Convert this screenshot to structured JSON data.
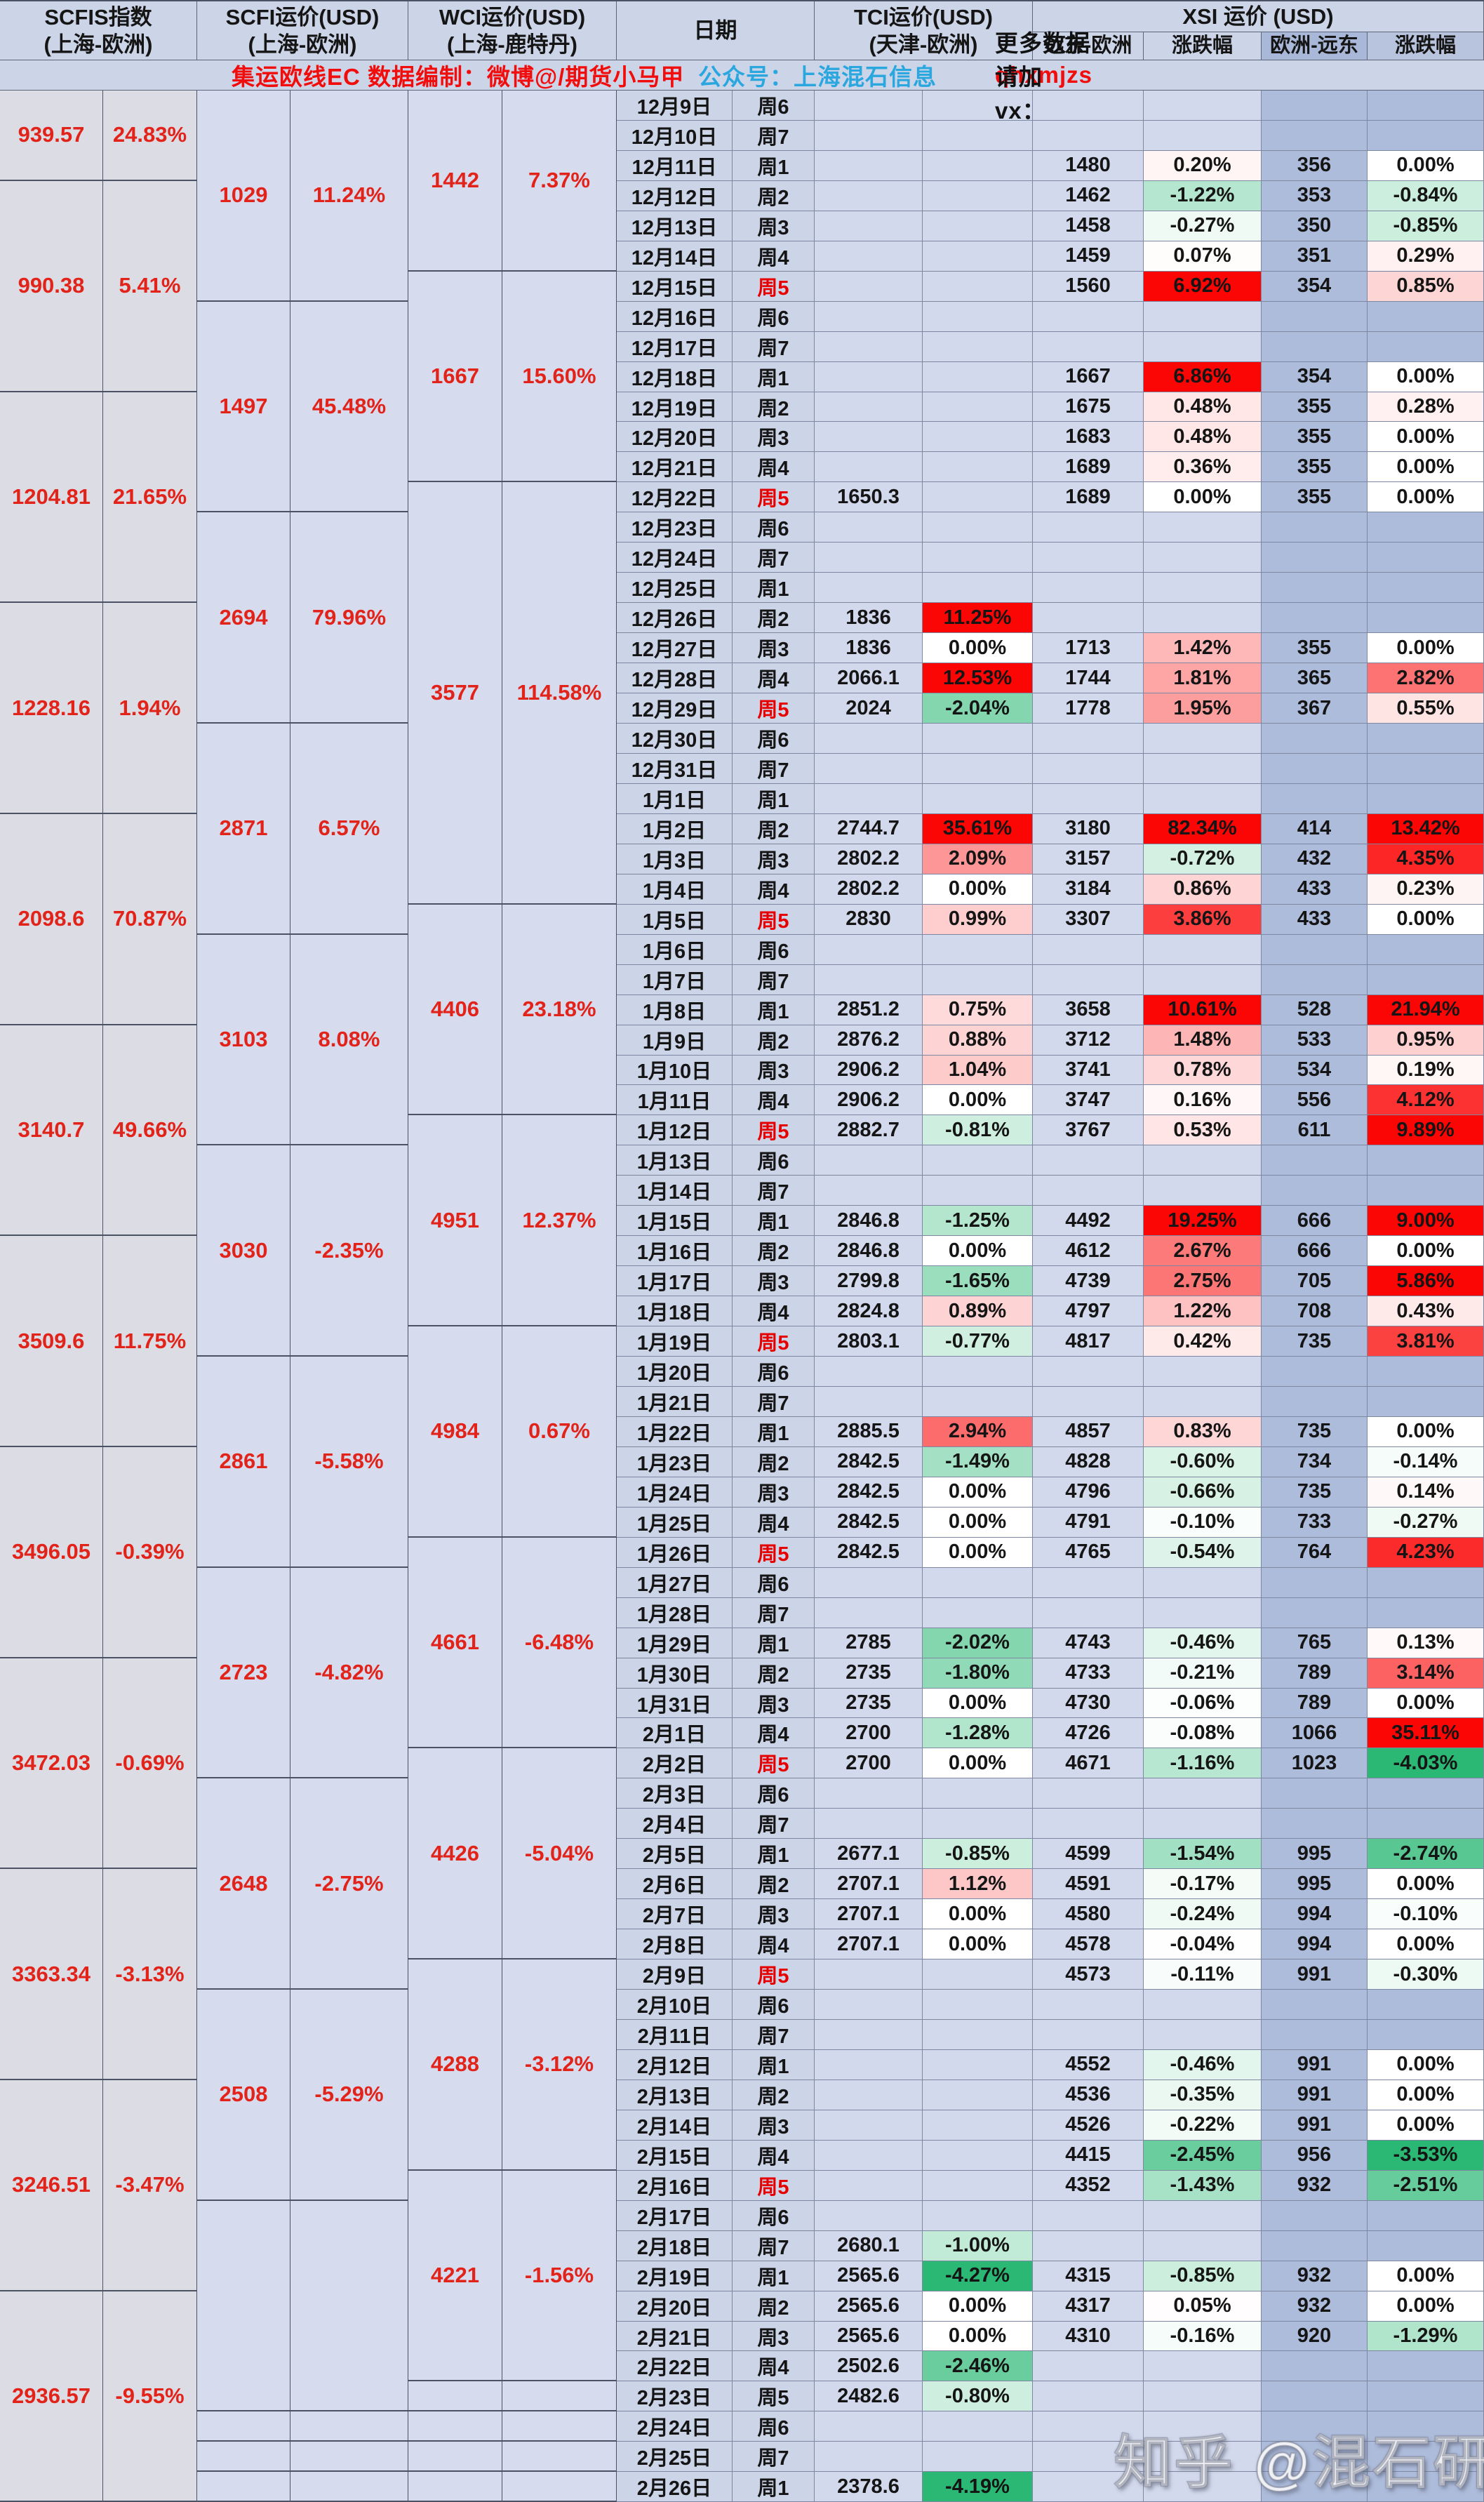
{
  "header": {
    "scfis": {
      "title": "SCFIS指数",
      "sub": "(上海-欧洲)"
    },
    "scfi": {
      "title": "SCFI运价(USD)",
      "sub": "(上海-欧洲)"
    },
    "wci": {
      "title": "WCI运价(USD)",
      "sub": "(上海-鹿特丹)"
    },
    "date": {
      "title": "日期"
    },
    "tci": {
      "title": "TCI运价(USD)",
      "sub": "(天津-欧洲)"
    },
    "xsi": {
      "title": "XSI 运价 (USD)",
      "sub_fe": "远东-欧洲",
      "sub_fe_pct": "涨跌幅",
      "sub_eu": "欧洲-远东",
      "sub_eu_pct": "涨跌幅"
    }
  },
  "info_bar": {
    "credit": "集运欧线EC 数据编制：微博@/期货小马甲",
    "account": "公众号：上海混石信息",
    "more_prefix": "更多数据请加 vx：",
    "more_wechat": "qhxmjzs"
  },
  "watermark": "知乎 @混石研究",
  "colors": {
    "pct_pos_full": "#fb0505",
    "pct_pos_cap": 5,
    "pct_neg_full": "#2ab874",
    "pct_neg_cap": 3.5,
    "text_up_red": "#e2231a",
    "text_down_green": "#189f58",
    "friday_red": "#e60000",
    "link_cyan": "#2ba7df"
  },
  "scfis_blocks": [
    {
      "value": "939.57",
      "pct": "24.83%",
      "span": 3
    },
    {
      "value": "990.38",
      "pct": "5.41%",
      "span": 7
    },
    {
      "value": "1204.81",
      "pct": "21.65%",
      "span": 7
    },
    {
      "value": "1228.16",
      "pct": "1.94%",
      "span": 7
    },
    {
      "value": "2098.6",
      "pct": "70.87%",
      "span": 7
    },
    {
      "value": "3140.7",
      "pct": "49.66%",
      "span": 7
    },
    {
      "value": "3509.6",
      "pct": "11.75%",
      "span": 7
    },
    {
      "value": "3496.05",
      "pct": "-0.39%",
      "span": 7
    },
    {
      "value": "3472.03",
      "pct": "-0.69%",
      "span": 7
    },
    {
      "value": "3363.34",
      "pct": "-3.13%",
      "span": 7
    },
    {
      "value": "3246.51",
      "pct": "-3.47%",
      "span": 7
    },
    {
      "value": "2936.57",
      "pct": "-9.55%",
      "span": 7
    }
  ],
  "scfi_blocks": [
    {
      "value": "1029",
      "pct": "11.24%",
      "span": 7
    },
    {
      "value": "1497",
      "pct": "45.48%",
      "span": 7
    },
    {
      "value": "2694",
      "pct": "79.96%",
      "span": 7
    },
    {
      "value": "2871",
      "pct": "6.57%",
      "span": 7
    },
    {
      "value": "3103",
      "pct": "8.08%",
      "span": 7
    },
    {
      "value": "3030",
      "pct": "-2.35%",
      "span": 7
    },
    {
      "value": "2861",
      "pct": "-5.58%",
      "span": 7
    },
    {
      "value": "2723",
      "pct": "-4.82%",
      "span": 7
    },
    {
      "value": "2648",
      "pct": "-2.75%",
      "span": 7
    },
    {
      "value": "2508",
      "pct": "-5.29%",
      "span": 7
    },
    {
      "value": null,
      "pct": null,
      "span": 7
    },
    {
      "value": null,
      "pct": null,
      "span": 1
    },
    {
      "value": null,
      "pct": null,
      "span": 1
    },
    {
      "value": null,
      "pct": null,
      "span": 1
    }
  ],
  "wci_blocks": [
    {
      "value": "1442",
      "pct": "7.37%",
      "span": 6
    },
    {
      "value": "1667",
      "pct": "15.60%",
      "span": 7
    },
    {
      "value": "3577",
      "pct": "114.58%",
      "span": 14
    },
    {
      "value": "4406",
      "pct": "23.18%",
      "span": 7
    },
    {
      "value": "4951",
      "pct": "12.37%",
      "span": 7
    },
    {
      "value": "4984",
      "pct": "0.67%",
      "span": 7
    },
    {
      "value": "4661",
      "pct": "-6.48%",
      "span": 7
    },
    {
      "value": "4426",
      "pct": "-5.04%",
      "span": 7
    },
    {
      "value": "4288",
      "pct": "-3.12%",
      "span": 7
    },
    {
      "value": "4221",
      "pct": "-1.56%",
      "span": 7
    },
    {
      "value": null,
      "pct": null,
      "span": 1
    },
    {
      "value": null,
      "pct": null,
      "span": 1
    },
    {
      "value": null,
      "pct": null,
      "span": 1
    },
    {
      "value": null,
      "pct": null,
      "span": 1
    }
  ],
  "row_fields": [
    "date",
    "weekday",
    "tci",
    "tci_pct",
    "fe_eu",
    "fe_eu_pct",
    "eu_fe",
    "eu_fe_pct",
    "weekday_red"
  ],
  "rows": [
    [
      "12月9日",
      "周6",
      null,
      null,
      null,
      null,
      null,
      null,
      0
    ],
    [
      "12月10日",
      "周7",
      null,
      null,
      null,
      null,
      null,
      null,
      0
    ],
    [
      "12月11日",
      "周1",
      null,
      null,
      "1480",
      "0.20%",
      "356",
      "0.00%",
      0
    ],
    [
      "12月12日",
      "周2",
      null,
      null,
      "1462",
      "-1.22%",
      "353",
      "-0.84%",
      0
    ],
    [
      "12月13日",
      "周3",
      null,
      null,
      "1458",
      "-0.27%",
      "350",
      "-0.85%",
      0
    ],
    [
      "12月14日",
      "周4",
      null,
      null,
      "1459",
      "0.07%",
      "351",
      "0.29%",
      0
    ],
    [
      "12月15日",
      "周5",
      null,
      null,
      "1560",
      "6.92%",
      "354",
      "0.85%",
      1
    ],
    [
      "12月16日",
      "周6",
      null,
      null,
      null,
      null,
      null,
      null,
      0
    ],
    [
      "12月17日",
      "周7",
      null,
      null,
      null,
      null,
      null,
      null,
      0
    ],
    [
      "12月18日",
      "周1",
      null,
      null,
      "1667",
      "6.86%",
      "354",
      "0.00%",
      0
    ],
    [
      "12月19日",
      "周2",
      null,
      null,
      "1675",
      "0.48%",
      "355",
      "0.28%",
      0
    ],
    [
      "12月20日",
      "周3",
      null,
      null,
      "1683",
      "0.48%",
      "355",
      "0.00%",
      0
    ],
    [
      "12月21日",
      "周4",
      null,
      null,
      "1689",
      "0.36%",
      "355",
      "0.00%",
      0
    ],
    [
      "12月22日",
      "周5",
      "1650.3",
      null,
      "1689",
      "0.00%",
      "355",
      "0.00%",
      1
    ],
    [
      "12月23日",
      "周6",
      null,
      null,
      null,
      null,
      null,
      null,
      0
    ],
    [
      "12月24日",
      "周7",
      null,
      null,
      null,
      null,
      null,
      null,
      0
    ],
    [
      "12月25日",
      "周1",
      null,
      null,
      null,
      null,
      null,
      null,
      0
    ],
    [
      "12月26日",
      "周2",
      "1836",
      "11.25%",
      null,
      null,
      null,
      null,
      0
    ],
    [
      "12月27日",
      "周3",
      "1836",
      "0.00%",
      "1713",
      "1.42%",
      "355",
      "0.00%",
      0
    ],
    [
      "12月28日",
      "周4",
      "2066.1",
      "12.53%",
      "1744",
      "1.81%",
      "365",
      "2.82%",
      0
    ],
    [
      "12月29日",
      "周5",
      "2024",
      "-2.04%",
      "1778",
      "1.95%",
      "367",
      "0.55%",
      1
    ],
    [
      "12月30日",
      "周6",
      null,
      null,
      null,
      null,
      null,
      null,
      0
    ],
    [
      "12月31日",
      "周7",
      null,
      null,
      null,
      null,
      null,
      null,
      0
    ],
    [
      "1月1日",
      "周1",
      null,
      null,
      null,
      null,
      null,
      null,
      0
    ],
    [
      "1月2日",
      "周2",
      "2744.7",
      "35.61%",
      "3180",
      "82.34%",
      "414",
      "13.42%",
      0
    ],
    [
      "1月3日",
      "周3",
      "2802.2",
      "2.09%",
      "3157",
      "-0.72%",
      "432",
      "4.35%",
      0
    ],
    [
      "1月4日",
      "周4",
      "2802.2",
      "0.00%",
      "3184",
      "0.86%",
      "433",
      "0.23%",
      0
    ],
    [
      "1月5日",
      "周5",
      "2830",
      "0.99%",
      "3307",
      "3.86%",
      "433",
      "0.00%",
      1
    ],
    [
      "1月6日",
      "周6",
      null,
      null,
      null,
      null,
      null,
      null,
      0
    ],
    [
      "1月7日",
      "周7",
      null,
      null,
      null,
      null,
      null,
      null,
      0
    ],
    [
      "1月8日",
      "周1",
      "2851.2",
      "0.75%",
      "3658",
      "10.61%",
      "528",
      "21.94%",
      0
    ],
    [
      "1月9日",
      "周2",
      "2876.2",
      "0.88%",
      "3712",
      "1.48%",
      "533",
      "0.95%",
      0
    ],
    [
      "1月10日",
      "周3",
      "2906.2",
      "1.04%",
      "3741",
      "0.78%",
      "534",
      "0.19%",
      0
    ],
    [
      "1月11日",
      "周4",
      "2906.2",
      "0.00%",
      "3747",
      "0.16%",
      "556",
      "4.12%",
      0
    ],
    [
      "1月12日",
      "周5",
      "2882.7",
      "-0.81%",
      "3767",
      "0.53%",
      "611",
      "9.89%",
      1
    ],
    [
      "1月13日",
      "周6",
      null,
      null,
      null,
      null,
      null,
      null,
      0
    ],
    [
      "1月14日",
      "周7",
      null,
      null,
      null,
      null,
      null,
      null,
      0
    ],
    [
      "1月15日",
      "周1",
      "2846.8",
      "-1.25%",
      "4492",
      "19.25%",
      "666",
      "9.00%",
      0
    ],
    [
      "1月16日",
      "周2",
      "2846.8",
      "0.00%",
      "4612",
      "2.67%",
      "666",
      "0.00%",
      0
    ],
    [
      "1月17日",
      "周3",
      "2799.8",
      "-1.65%",
      "4739",
      "2.75%",
      "705",
      "5.86%",
      0
    ],
    [
      "1月18日",
      "周4",
      "2824.8",
      "0.89%",
      "4797",
      "1.22%",
      "708",
      "0.43%",
      0
    ],
    [
      "1月19日",
      "周5",
      "2803.1",
      "-0.77%",
      "4817",
      "0.42%",
      "735",
      "3.81%",
      1
    ],
    [
      "1月20日",
      "周6",
      null,
      null,
      null,
      null,
      null,
      null,
      0
    ],
    [
      "1月21日",
      "周7",
      null,
      null,
      null,
      null,
      null,
      null,
      0
    ],
    [
      "1月22日",
      "周1",
      "2885.5",
      "2.94%",
      "4857",
      "0.83%",
      "735",
      "0.00%",
      0
    ],
    [
      "1月23日",
      "周2",
      "2842.5",
      "-1.49%",
      "4828",
      "-0.60%",
      "734",
      "-0.14%",
      0
    ],
    [
      "1月24日",
      "周3",
      "2842.5",
      "0.00%",
      "4796",
      "-0.66%",
      "735",
      "0.14%",
      0
    ],
    [
      "1月25日",
      "周4",
      "2842.5",
      "0.00%",
      "4791",
      "-0.10%",
      "733",
      "-0.27%",
      0
    ],
    [
      "1月26日",
      "周5",
      "2842.5",
      "0.00%",
      "4765",
      "-0.54%",
      "764",
      "4.23%",
      1
    ],
    [
      "1月27日",
      "周6",
      null,
      null,
      null,
      null,
      null,
      null,
      0
    ],
    [
      "1月28日",
      "周7",
      null,
      null,
      null,
      null,
      null,
      null,
      0
    ],
    [
      "1月29日",
      "周1",
      "2785",
      "-2.02%",
      "4743",
      "-0.46%",
      "765",
      "0.13%",
      0
    ],
    [
      "1月30日",
      "周2",
      "2735",
      "-1.80%",
      "4733",
      "-0.21%",
      "789",
      "3.14%",
      0
    ],
    [
      "1月31日",
      "周3",
      "2735",
      "0.00%",
      "4730",
      "-0.06%",
      "789",
      "0.00%",
      0
    ],
    [
      "2月1日",
      "周4",
      "2700",
      "-1.28%",
      "4726",
      "-0.08%",
      "1066",
      "35.11%",
      0
    ],
    [
      "2月2日",
      "周5",
      "2700",
      "0.00%",
      "4671",
      "-1.16%",
      "1023",
      "-4.03%",
      1
    ],
    [
      "2月3日",
      "周6",
      null,
      null,
      null,
      null,
      null,
      null,
      0
    ],
    [
      "2月4日",
      "周7",
      null,
      null,
      null,
      null,
      null,
      null,
      0
    ],
    [
      "2月5日",
      "周1",
      "2677.1",
      "-0.85%",
      "4599",
      "-1.54%",
      "995",
      "-2.74%",
      0
    ],
    [
      "2月6日",
      "周2",
      "2707.1",
      "1.12%",
      "4591",
      "-0.17%",
      "995",
      "0.00%",
      0
    ],
    [
      "2月7日",
      "周3",
      "2707.1",
      "0.00%",
      "4580",
      "-0.24%",
      "994",
      "-0.10%",
      0
    ],
    [
      "2月8日",
      "周4",
      "2707.1",
      "0.00%",
      "4578",
      "-0.04%",
      "994",
      "0.00%",
      0
    ],
    [
      "2月9日",
      "周5",
      null,
      null,
      "4573",
      "-0.11%",
      "991",
      "-0.30%",
      1
    ],
    [
      "2月10日",
      "周6",
      null,
      null,
      null,
      null,
      null,
      null,
      0
    ],
    [
      "2月11日",
      "周7",
      null,
      null,
      null,
      null,
      null,
      null,
      0
    ],
    [
      "2月12日",
      "周1",
      null,
      null,
      "4552",
      "-0.46%",
      "991",
      "0.00%",
      0
    ],
    [
      "2月13日",
      "周2",
      null,
      null,
      "4536",
      "-0.35%",
      "991",
      "0.00%",
      0
    ],
    [
      "2月14日",
      "周3",
      null,
      null,
      "4526",
      "-0.22%",
      "991",
      "0.00%",
      0
    ],
    [
      "2月15日",
      "周4",
      null,
      null,
      "4415",
      "-2.45%",
      "956",
      "-3.53%",
      0
    ],
    [
      "2月16日",
      "周5",
      null,
      null,
      "4352",
      "-1.43%",
      "932",
      "-2.51%",
      1
    ],
    [
      "2月17日",
      "周6",
      null,
      null,
      null,
      null,
      null,
      null,
      0
    ],
    [
      "2月18日",
      "周7",
      "2680.1",
      "-1.00%",
      null,
      null,
      null,
      null,
      0
    ],
    [
      "2月19日",
      "周1",
      "2565.6",
      "-4.27%",
      "4315",
      "-0.85%",
      "932",
      "0.00%",
      0
    ],
    [
      "2月20日",
      "周2",
      "2565.6",
      "0.00%",
      "4317",
      "0.05%",
      "932",
      "0.00%",
      0
    ],
    [
      "2月21日",
      "周3",
      "2565.6",
      "0.00%",
      "4310",
      "-0.16%",
      "920",
      "-1.29%",
      0
    ],
    [
      "2月22日",
      "周4",
      "2502.6",
      "-2.46%",
      null,
      null,
      null,
      null,
      0
    ],
    [
      "2月23日",
      "周5",
      "2482.6",
      "-0.80%",
      null,
      null,
      null,
      null,
      0
    ],
    [
      "2月24日",
      "周6",
      null,
      null,
      null,
      null,
      null,
      null,
      0
    ],
    [
      "2月25日",
      "周7",
      null,
      null,
      null,
      null,
      null,
      null,
      0
    ],
    [
      "2月26日",
      "周1",
      "2378.6",
      "-4.19%",
      null,
      null,
      null,
      null,
      0
    ]
  ]
}
